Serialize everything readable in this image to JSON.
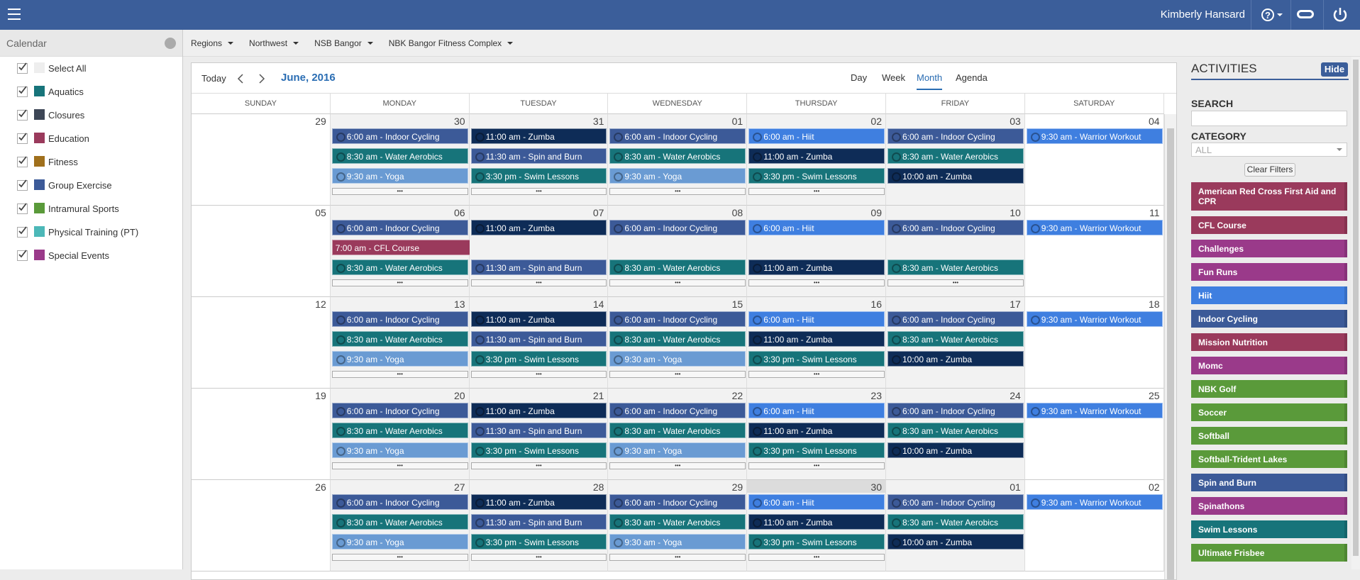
{
  "header": {
    "user": "Kimberly Hansard",
    "help": "?"
  },
  "sidebar": {
    "title": "Calendar",
    "items": [
      {
        "label": "Select All",
        "color": "#eeeeee"
      },
      {
        "label": "Aquatics",
        "color": "#17747a"
      },
      {
        "label": "Closures",
        "color": "#3d4656"
      },
      {
        "label": "Education",
        "color": "#9a3a5c"
      },
      {
        "label": "Fitness",
        "color": "#a0701c"
      },
      {
        "label": "Group Exercise",
        "color": "#3c5a98"
      },
      {
        "label": "Intramural Sports",
        "color": "#5a9a3a"
      },
      {
        "label": "Physical Training (PT)",
        "color": "#4cb8b8"
      },
      {
        "label": "Special Events",
        "color": "#9a3a8a"
      }
    ]
  },
  "breadcrumbs": [
    "Regions",
    "Northwest",
    "NSB Bangor",
    "NBK Bangor Fitness Complex"
  ],
  "calendar": {
    "today": "Today",
    "title": "June, 2016",
    "views": [
      "Day",
      "Week",
      "Month",
      "Agenda"
    ],
    "active_view": 2,
    "weekdays": [
      "SUNDAY",
      "MONDAY",
      "TUESDAY",
      "WEDNESDAY",
      "THURSDAY",
      "FRIDAY",
      "SATURDAY"
    ],
    "more_label": "•••",
    "weeks": [
      [
        {
          "date": "29",
          "events": []
        },
        {
          "date": "30",
          "more": true,
          "events": [
            {
              "text": "6:00 am - Indoor Cycling",
              "color": "#3c5a98"
            },
            {
              "text": "8:30 am - Water Aerobics",
              "color": "#17747a"
            },
            {
              "text": "9:30 am - Yoga",
              "color": "#6a9bd3"
            }
          ]
        },
        {
          "date": "31",
          "more": true,
          "events": [
            {
              "text": "11:00 am - Zumba",
              "color": "#0e2c57"
            },
            {
              "text": "11:30 am - Spin and Burn",
              "color": "#3c5a98"
            },
            {
              "text": "3:30 pm - Swim Lessons",
              "color": "#17747a"
            }
          ]
        },
        {
          "date": "01",
          "more": true,
          "events": [
            {
              "text": "6:00 am - Indoor Cycling",
              "color": "#3c5a98"
            },
            {
              "text": "8:30 am - Water Aerobics",
              "color": "#17747a"
            },
            {
              "text": "9:30 am - Yoga",
              "color": "#6a9bd3"
            }
          ]
        },
        {
          "date": "02",
          "more": true,
          "events": [
            {
              "text": "6:00 am - Hiit",
              "color": "#3f7fe0"
            },
            {
              "text": "11:00 am - Zumba",
              "color": "#0e2c57"
            },
            {
              "text": "3:30 pm - Swim Lessons",
              "color": "#17747a"
            }
          ]
        },
        {
          "date": "03",
          "events": [
            {
              "text": "6:00 am - Indoor Cycling",
              "color": "#3c5a98"
            },
            {
              "text": "8:30 am - Water Aerobics",
              "color": "#17747a"
            },
            {
              "text": "10:00 am - Zumba",
              "color": "#0e2c57"
            }
          ]
        },
        {
          "date": "04",
          "events": [
            {
              "text": "9:30 am - Warrior Workout",
              "color": "#3f7fe0"
            }
          ]
        }
      ],
      [
        {
          "date": "05",
          "events": []
        },
        {
          "date": "06",
          "more": true,
          "events": [
            {
              "text": "6:00 am - Indoor Cycling",
              "color": "#3c5a98"
            },
            {
              "text": "7:00 am - CFL Course",
              "color": "#9a3a5c",
              "span": 5
            },
            {
              "text": "8:30 am - Water Aerobics",
              "color": "#17747a"
            }
          ]
        },
        {
          "date": "07",
          "more": true,
          "events": [
            {
              "text": "11:00 am - Zumba",
              "color": "#0e2c57"
            },
            null,
            {
              "text": "11:30 am - Spin and Burn",
              "color": "#3c5a98"
            }
          ]
        },
        {
          "date": "08",
          "more": true,
          "events": [
            {
              "text": "6:00 am - Indoor Cycling",
              "color": "#3c5a98"
            },
            null,
            {
              "text": "8:30 am - Water Aerobics",
              "color": "#17747a"
            }
          ]
        },
        {
          "date": "09",
          "more": true,
          "events": [
            {
              "text": "6:00 am - Hiit",
              "color": "#3f7fe0"
            },
            null,
            {
              "text": "11:00 am - Zumba",
              "color": "#0e2c57"
            }
          ]
        },
        {
          "date": "10",
          "more": true,
          "events": [
            {
              "text": "6:00 am - Indoor Cycling",
              "color": "#3c5a98"
            },
            null,
            {
              "text": "8:30 am - Water Aerobics",
              "color": "#17747a"
            }
          ]
        },
        {
          "date": "11",
          "events": [
            {
              "text": "9:30 am - Warrior Workout",
              "color": "#3f7fe0"
            }
          ]
        }
      ],
      [
        {
          "date": "12",
          "events": []
        },
        {
          "date": "13",
          "more": true,
          "events": [
            {
              "text": "6:00 am - Indoor Cycling",
              "color": "#3c5a98"
            },
            {
              "text": "8:30 am - Water Aerobics",
              "color": "#17747a"
            },
            {
              "text": "9:30 am - Yoga",
              "color": "#6a9bd3"
            }
          ]
        },
        {
          "date": "14",
          "more": true,
          "events": [
            {
              "text": "11:00 am - Zumba",
              "color": "#0e2c57"
            },
            {
              "text": "11:30 am - Spin and Burn",
              "color": "#3c5a98"
            },
            {
              "text": "3:30 pm - Swim Lessons",
              "color": "#17747a"
            }
          ]
        },
        {
          "date": "15",
          "more": true,
          "events": [
            {
              "text": "6:00 am - Indoor Cycling",
              "color": "#3c5a98"
            },
            {
              "text": "8:30 am - Water Aerobics",
              "color": "#17747a"
            },
            {
              "text": "9:30 am - Yoga",
              "color": "#6a9bd3"
            }
          ]
        },
        {
          "date": "16",
          "more": true,
          "events": [
            {
              "text": "6:00 am - Hiit",
              "color": "#3f7fe0"
            },
            {
              "text": "11:00 am - Zumba",
              "color": "#0e2c57"
            },
            {
              "text": "3:30 pm - Swim Lessons",
              "color": "#17747a"
            }
          ]
        },
        {
          "date": "17",
          "events": [
            {
              "text": "6:00 am - Indoor Cycling",
              "color": "#3c5a98"
            },
            {
              "text": "8:30 am - Water Aerobics",
              "color": "#17747a"
            },
            {
              "text": "10:00 am - Zumba",
              "color": "#0e2c57"
            }
          ]
        },
        {
          "date": "18",
          "events": [
            {
              "text": "9:30 am - Warrior Workout",
              "color": "#3f7fe0"
            }
          ]
        }
      ],
      [
        {
          "date": "19",
          "events": []
        },
        {
          "date": "20",
          "more": true,
          "events": [
            {
              "text": "6:00 am - Indoor Cycling",
              "color": "#3c5a98"
            },
            {
              "text": "8:30 am - Water Aerobics",
              "color": "#17747a"
            },
            {
              "text": "9:30 am - Yoga",
              "color": "#6a9bd3"
            }
          ]
        },
        {
          "date": "21",
          "more": true,
          "events": [
            {
              "text": "11:00 am - Zumba",
              "color": "#0e2c57"
            },
            {
              "text": "11:30 am - Spin and Burn",
              "color": "#3c5a98"
            },
            {
              "text": "3:30 pm - Swim Lessons",
              "color": "#17747a"
            }
          ]
        },
        {
          "date": "22",
          "more": true,
          "events": [
            {
              "text": "6:00 am - Indoor Cycling",
              "color": "#3c5a98"
            },
            {
              "text": "8:30 am - Water Aerobics",
              "color": "#17747a"
            },
            {
              "text": "9:30 am - Yoga",
              "color": "#6a9bd3"
            }
          ]
        },
        {
          "date": "23",
          "more": true,
          "events": [
            {
              "text": "6:00 am - Hiit",
              "color": "#3f7fe0"
            },
            {
              "text": "11:00 am - Zumba",
              "color": "#0e2c57"
            },
            {
              "text": "3:30 pm - Swim Lessons",
              "color": "#17747a"
            }
          ]
        },
        {
          "date": "24",
          "events": [
            {
              "text": "6:00 am - Indoor Cycling",
              "color": "#3c5a98"
            },
            {
              "text": "8:30 am - Water Aerobics",
              "color": "#17747a"
            },
            {
              "text": "10:00 am - Zumba",
              "color": "#0e2c57"
            }
          ]
        },
        {
          "date": "25",
          "events": [
            {
              "text": "9:30 am - Warrior Workout",
              "color": "#3f7fe0"
            }
          ]
        }
      ],
      [
        {
          "date": "26",
          "events": []
        },
        {
          "date": "27",
          "more": true,
          "events": [
            {
              "text": "6:00 am - Indoor Cycling",
              "color": "#3c5a98"
            },
            {
              "text": "8:30 am - Water Aerobics",
              "color": "#17747a"
            },
            {
              "text": "9:30 am - Yoga",
              "color": "#6a9bd3"
            }
          ]
        },
        {
          "date": "28",
          "more": true,
          "events": [
            {
              "text": "11:00 am - Zumba",
              "color": "#0e2c57"
            },
            {
              "text": "11:30 am - Spin and Burn",
              "color": "#3c5a98"
            },
            {
              "text": "3:30 pm - Swim Lessons",
              "color": "#17747a"
            }
          ]
        },
        {
          "date": "29",
          "more": true,
          "events": [
            {
              "text": "6:00 am - Indoor Cycling",
              "color": "#3c5a98"
            },
            {
              "text": "8:30 am - Water Aerobics",
              "color": "#17747a"
            },
            {
              "text": "9:30 am - Yoga",
              "color": "#6a9bd3"
            }
          ]
        },
        {
          "date": "30",
          "today": true,
          "more": true,
          "events": [
            {
              "text": "6:00 am - Hiit",
              "color": "#3f7fe0"
            },
            {
              "text": "11:00 am - Zumba",
              "color": "#0e2c57"
            },
            {
              "text": "3:30 pm - Swim Lessons",
              "color": "#17747a"
            }
          ]
        },
        {
          "date": "01",
          "events": [
            {
              "text": "6:00 am - Indoor Cycling",
              "color": "#3c5a98"
            },
            {
              "text": "8:30 am - Water Aerobics",
              "color": "#17747a"
            },
            {
              "text": "10:00 am - Zumba",
              "color": "#0e2c57"
            }
          ]
        },
        {
          "date": "02",
          "events": [
            {
              "text": "9:30 am - Warrior Workout",
              "color": "#3f7fe0"
            }
          ]
        }
      ]
    ]
  },
  "activities": {
    "title": "ACTIVITIES",
    "hide": "Hide",
    "search_label": "SEARCH",
    "category_label": "CATEGORY",
    "category_value": "ALL",
    "clear": "Clear Filters",
    "items": [
      {
        "name": "American Red Cross First Aid and CPR",
        "color": "#9a3a5c"
      },
      {
        "name": "CFL Course",
        "color": "#9a3a5c"
      },
      {
        "name": "Challenges",
        "color": "#9a3a8a"
      },
      {
        "name": "Fun Runs",
        "color": "#9a3a8a"
      },
      {
        "name": "Hiit",
        "color": "#3f7fe0"
      },
      {
        "name": "Indoor Cycling",
        "color": "#3c5a98"
      },
      {
        "name": "Mission Nutrition",
        "color": "#9a3a5c"
      },
      {
        "name": "Momc",
        "color": "#9a3a8a"
      },
      {
        "name": "NBK Golf",
        "color": "#5a9a3a"
      },
      {
        "name": "Soccer",
        "color": "#5a9a3a"
      },
      {
        "name": "Softball",
        "color": "#5a9a3a"
      },
      {
        "name": "Softball-Trident Lakes",
        "color": "#5a9a3a"
      },
      {
        "name": "Spin and Burn",
        "color": "#3c5a98"
      },
      {
        "name": "Spinathons",
        "color": "#9a3a8a"
      },
      {
        "name": "Swim Lessons",
        "color": "#17747a"
      },
      {
        "name": "Ultimate Frisbee",
        "color": "#5a9a3a"
      }
    ]
  }
}
